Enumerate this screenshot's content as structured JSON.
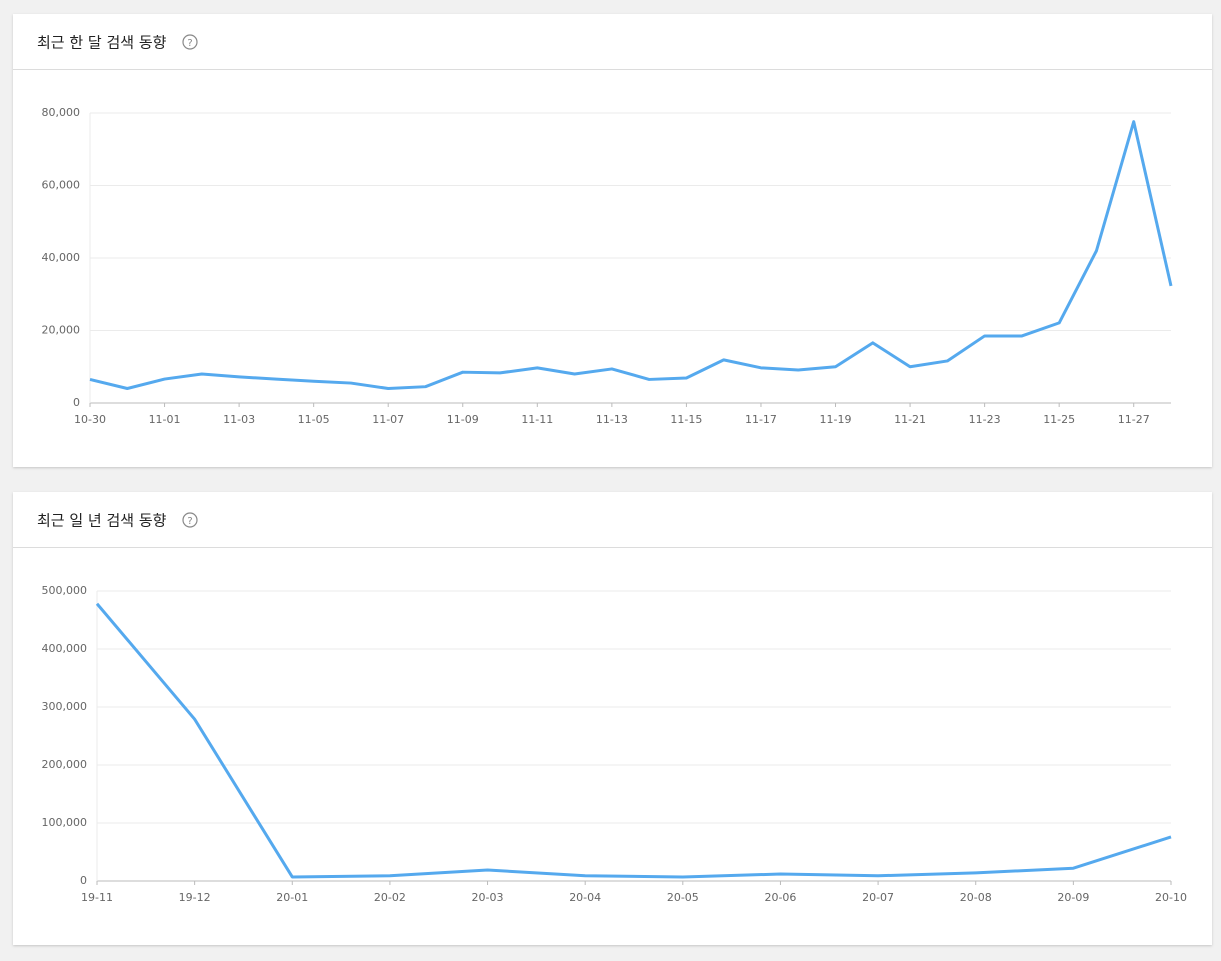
{
  "chart_data": [
    {
      "type": "line",
      "title": "최근 한 달 검색 동향",
      "help_label": "?",
      "categories": [
        "10-30",
        null,
        "11-01",
        null,
        "11-03",
        null,
        "11-05",
        null,
        "11-07",
        null,
        "11-09",
        null,
        "11-11",
        null,
        "11-13",
        null,
        "11-15",
        null,
        "11-17",
        null,
        "11-19",
        null,
        "11-21",
        null,
        "11-23",
        null,
        "11-25",
        null,
        "11-27",
        null
      ],
      "series": [
        {
          "color": "#55a9ee",
          "values": [
            6500,
            4000,
            6600,
            8000,
            7200,
            6600,
            6000,
            5500,
            4000,
            4500,
            8500,
            8300,
            9700,
            8000,
            9400,
            6500,
            6900,
            11900,
            9700,
            9100,
            10000,
            16600,
            10000,
            11600,
            18500,
            18500,
            22100,
            42000,
            77600,
            32300
          ]
        }
      ],
      "ylim": [
        0,
        80000
      ],
      "yticks": [
        0,
        {
          "value": 20000,
          "label": "20,000"
        },
        {
          "value": 40000,
          "label": "40,000"
        },
        {
          "value": 60000,
          "label": "60,000"
        },
        {
          "value": 80000,
          "label": "80,000"
        }
      ],
      "grid": true
    },
    {
      "type": "line",
      "title": "최근 일 년 검색 동향",
      "help_label": "?",
      "categories": [
        "19-11",
        "19-12",
        "20-01",
        "20-02",
        "20-03",
        "20-04",
        "20-05",
        "20-06",
        "20-07",
        "20-08",
        "20-09",
        "20-10"
      ],
      "series": [
        {
          "color": "#55a9ee",
          "values": [
            478000,
            279000,
            7000,
            9000,
            19000,
            9000,
            7000,
            12000,
            9000,
            14000,
            22000,
            76000
          ]
        }
      ],
      "ylim": [
        0,
        500000
      ],
      "yticks": [
        0,
        {
          "value": 100000,
          "label": "100,000"
        },
        {
          "value": 200000,
          "label": "200,000"
        },
        {
          "value": 300000,
          "label": "300,000"
        },
        {
          "value": 400000,
          "label": "400,000"
        },
        {
          "value": 500000,
          "label": "500,000"
        }
      ],
      "grid": true
    }
  ]
}
